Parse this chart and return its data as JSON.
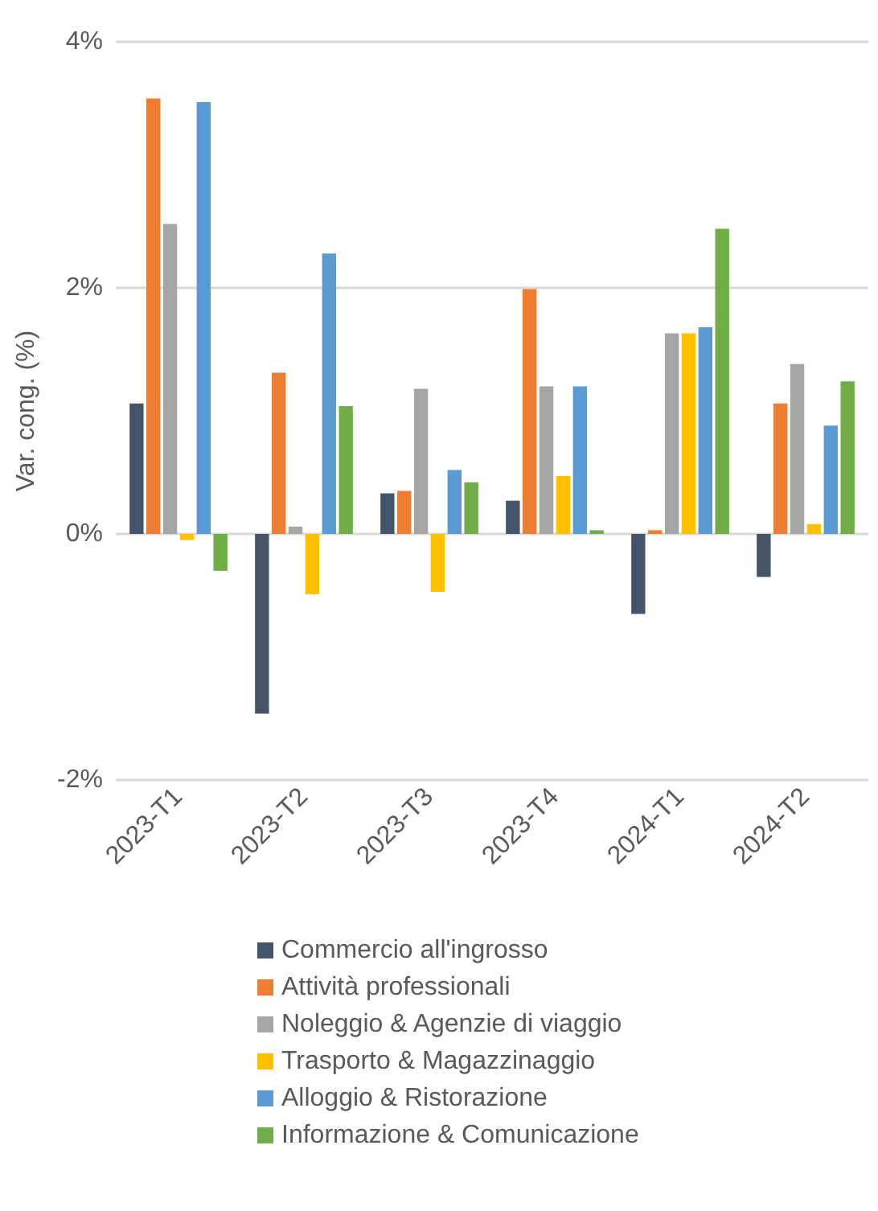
{
  "chart_data": {
    "type": "bar",
    "ylabel": "Var. cong. (%)",
    "categories": [
      "2023-T1",
      "2023-T2",
      "2023-T3",
      "2023-T4",
      "2024-T1",
      "2024-T2"
    ],
    "series": [
      {
        "name": "Commercio all'ingrosso",
        "color": "#44546a",
        "values": [
          1.06,
          -1.46,
          0.33,
          0.27,
          -0.65,
          -0.35
        ]
      },
      {
        "name": "Attività professionali",
        "color": "#ed7d31",
        "values": [
          3.54,
          1.31,
          0.35,
          1.99,
          0.03,
          1.06
        ]
      },
      {
        "name": "Noleggio & Agenzie di viaggio",
        "color": "#a5a5a5",
        "values": [
          2.52,
          0.06,
          1.18,
          1.2,
          1.63,
          1.38
        ]
      },
      {
        "name": "Trasporto & Magazzinaggio",
        "color": "#ffc000",
        "values": [
          -0.05,
          -0.49,
          -0.47,
          0.47,
          1.63,
          0.08
        ]
      },
      {
        "name": "Alloggio & Ristorazione",
        "color": "#5b9bd5",
        "values": [
          3.51,
          2.28,
          0.52,
          1.2,
          1.68,
          0.88
        ]
      },
      {
        "name": "Informazione & Comunicazione",
        "color": "#70ad47",
        "values": [
          -0.3,
          1.04,
          0.42,
          0.03,
          2.48,
          1.24
        ]
      }
    ],
    "ylim": [
      -2,
      4
    ],
    "yticks": [
      {
        "value": -2,
        "label": "-2%"
      },
      {
        "value": 0,
        "label": "0%"
      },
      {
        "value": 2,
        "label": "2%"
      },
      {
        "value": 4,
        "label": "4%"
      }
    ],
    "grid": "y",
    "legend": "bottom"
  }
}
